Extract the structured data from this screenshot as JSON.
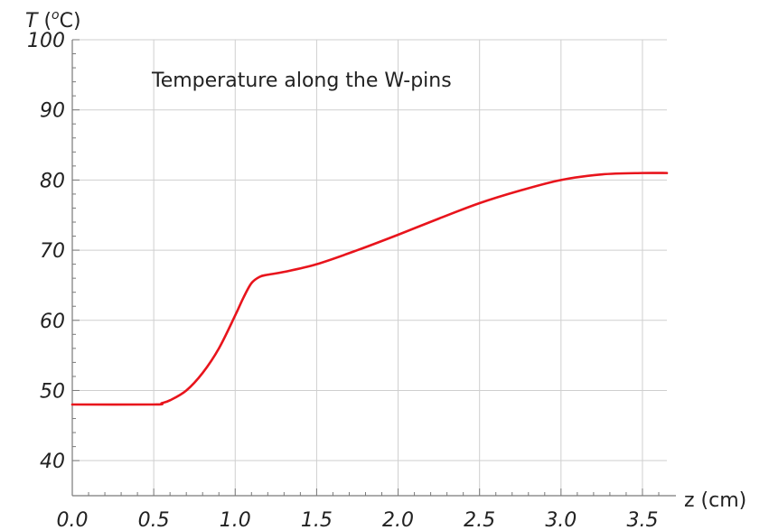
{
  "chart_data": {
    "type": "line",
    "title": "Temperature along the W-pins",
    "xlabel": "z (cm)",
    "ylabel": "T (oC)",
    "ylabel_parts": {
      "var": "T",
      "open": " (",
      "sup": "o",
      "unit": "C)"
    },
    "xlim": [
      0,
      3.65
    ],
    "ylim": [
      35,
      100
    ],
    "xticks": [
      0.0,
      0.5,
      1.0,
      1.5,
      2.0,
      2.5,
      3.0,
      3.5
    ],
    "xtick_labels": [
      "0.0",
      "0.5",
      "1.0",
      "1.5",
      "2.0",
      "2.5",
      "3.0",
      "3.5"
    ],
    "yticks": [
      40,
      50,
      60,
      70,
      80,
      90,
      100
    ],
    "ytick_labels": [
      "40",
      "50",
      "60",
      "70",
      "80",
      "90",
      "100"
    ],
    "grid": true,
    "series": [
      {
        "color": "#e8141c",
        "x": [
          0.0,
          0.5,
          0.55,
          0.6,
          0.7,
          0.8,
          0.9,
          1.0,
          1.05,
          1.1,
          1.15,
          1.2,
          1.3,
          1.5,
          1.75,
          2.0,
          2.25,
          2.5,
          2.75,
          3.0,
          3.25,
          3.5,
          3.65
        ],
        "y": [
          48.0,
          48.0,
          48.2,
          48.6,
          50.0,
          52.5,
          56.0,
          60.7,
          63.2,
          65.3,
          66.2,
          66.5,
          66.9,
          68.0,
          70.0,
          72.2,
          74.5,
          76.7,
          78.5,
          80.0,
          80.8,
          81.0,
          81.0
        ]
      }
    ]
  }
}
